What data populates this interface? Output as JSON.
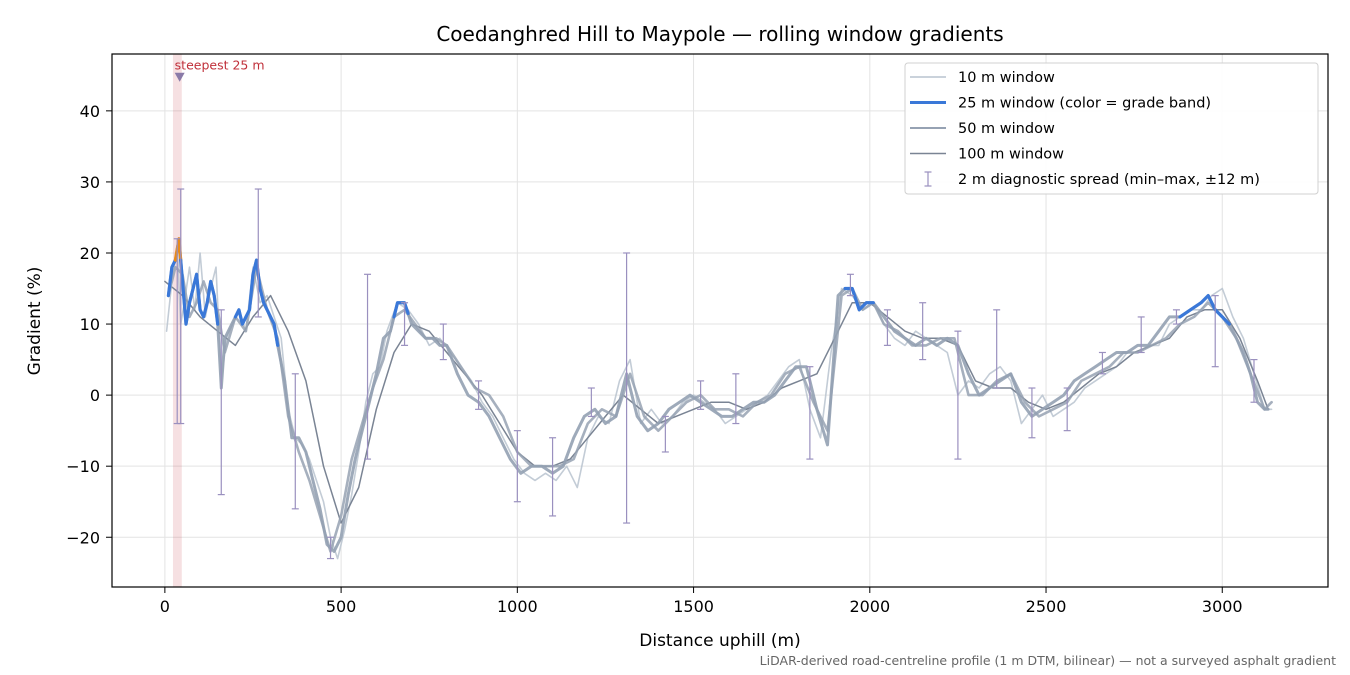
{
  "chart_data": {
    "type": "line",
    "title": "Coedanghred Hill to Maypole — rolling window gradients",
    "xlabel": "Distance uphill (m)",
    "ylabel": "Gradient (%)",
    "xlim": [
      -150,
      3300
    ],
    "ylim": [
      -27,
      48
    ],
    "x_ticks": [
      0,
      500,
      1000,
      1500,
      2000,
      2500,
      3000
    ],
    "x_tick_labels": [
      "0",
      "500",
      "1000",
      "1500",
      "2000",
      "2500",
      "3000"
    ],
    "y_ticks": [
      -20,
      -10,
      0,
      10,
      20,
      30,
      40
    ],
    "y_tick_labels": [
      "−20",
      "−10",
      "0",
      "10",
      "20",
      "30",
      "40"
    ],
    "grid": true,
    "legend_position": "top-right",
    "legend": [
      {
        "label": "10 m window",
        "color": "#b9c3cf"
      },
      {
        "label": "25 m window (color = grade band)",
        "color": "#3a78d8"
      },
      {
        "label": "50 m window",
        "color": "#96a2b3"
      },
      {
        "label": "100 m window",
        "color": "#7a8494"
      },
      {
        "label": "2 m diagnostic spread (min–max, ±12 m)",
        "color": "#9a90bf"
      }
    ],
    "colors": {
      "w10": "#b9c3cf",
      "w25": "#94a1b3",
      "w25_band_steep": "#3a78d8",
      "w25_band_max": "#e8891a",
      "w50": "#96a2b3",
      "w100": "#7a8494",
      "spread": "#9a90bf",
      "highlight": "#c0303a"
    },
    "series": [
      {
        "name": "100 m window",
        "x": [
          0,
          50,
          100,
          150,
          200,
          250,
          300,
          350,
          400,
          450,
          500,
          550,
          600,
          650,
          700,
          750,
          800,
          850,
          900,
          950,
          1000,
          1050,
          1100,
          1150,
          1200,
          1250,
          1300,
          1350,
          1400,
          1450,
          1500,
          1550,
          1600,
          1650,
          1700,
          1750,
          1800,
          1850,
          1900,
          1950,
          2000,
          2050,
          2100,
          2150,
          2200,
          2250,
          2300,
          2350,
          2400,
          2450,
          2500,
          2550,
          2600,
          2650,
          2700,
          2750,
          2800,
          2850,
          2900,
          2950,
          3000,
          3050,
          3100,
          3130
        ],
        "values": [
          16,
          14,
          11,
          9,
          7,
          11,
          14,
          9,
          2,
          -10,
          -18,
          -13,
          -2,
          6,
          10,
          9,
          6,
          3,
          0,
          -4,
          -8,
          -10,
          -10,
          -9,
          -6,
          -3,
          0,
          -2,
          -4,
          -3,
          -2,
          -1,
          -1,
          -2,
          -1,
          1,
          2,
          3,
          8,
          13,
          13,
          11,
          9,
          8,
          8,
          7,
          2,
          1,
          1,
          -1,
          -2,
          -1,
          1,
          3,
          4,
          6,
          7,
          8,
          11,
          12,
          12,
          8,
          2,
          -2
        ]
      },
      {
        "name": "50 m window",
        "x": [
          10,
          30,
          50,
          70,
          90,
          110,
          130,
          150,
          170,
          200,
          230,
          260,
          290,
          320,
          350,
          380,
          410,
          440,
          470,
          500,
          530,
          560,
          590,
          620,
          650,
          680,
          710,
          740,
          770,
          800,
          840,
          880,
          920,
          960,
          1000,
          1040,
          1080,
          1120,
          1160,
          1200,
          1240,
          1280,
          1320,
          1360,
          1400,
          1440,
          1480,
          1520,
          1560,
          1600,
          1640,
          1680,
          1720,
          1760,
          1800,
          1840,
          1880,
          1920,
          1950,
          1980,
          2010,
          2040,
          2080,
          2120,
          2160,
          2200,
          2240,
          2280,
          2320,
          2360,
          2400,
          2440,
          2480,
          2520,
          2560,
          2600,
          2640,
          2680,
          2720,
          2760,
          2800,
          2840,
          2880,
          2920,
          2960,
          3000,
          3040,
          3080,
          3120,
          3140
        ],
        "values": [
          14,
          18,
          17,
          11,
          13,
          16,
          13,
          12,
          6,
          11,
          9,
          18,
          12,
          8,
          -3,
          -8,
          -12,
          -17,
          -22,
          -17,
          -9,
          -4,
          1,
          5,
          11,
          12,
          10,
          8,
          8,
          7,
          4,
          1,
          0,
          -3,
          -8,
          -10,
          -10,
          -10,
          -9,
          -4,
          -2,
          -3,
          3,
          -3,
          -5,
          -3,
          -1,
          0,
          -2,
          -2,
          -3,
          -1,
          0,
          3,
          4,
          -1,
          -5,
          14,
          15,
          12,
          13,
          10,
          9,
          7,
          7,
          8,
          8,
          0,
          0,
          2,
          3,
          -1,
          -3,
          -2,
          -1,
          2,
          3,
          4,
          6,
          6,
          7,
          8,
          10,
          11,
          13,
          11,
          8,
          3,
          -2,
          -1
        ]
      },
      {
        "name": "10 m window",
        "x": [
          5,
          20,
          35,
          45,
          55,
          70,
          85,
          100,
          115,
          130,
          145,
          160,
          175,
          190,
          210,
          230,
          250,
          270,
          290,
          310,
          330,
          350,
          370,
          390,
          410,
          430,
          450,
          470,
          490,
          510,
          530,
          550,
          570,
          590,
          610,
          630,
          660,
          690,
          720,
          750,
          780,
          810,
          840,
          870,
          900,
          930,
          960,
          990,
          1020,
          1050,
          1080,
          1110,
          1140,
          1170,
          1200,
          1230,
          1260,
          1290,
          1320,
          1350,
          1380,
          1410,
          1440,
          1470,
          1500,
          1530,
          1560,
          1590,
          1620,
          1650,
          1680,
          1710,
          1740,
          1770,
          1800,
          1830,
          1860,
          1890,
          1920,
          1950,
          1980,
          2010,
          2040,
          2070,
          2100,
          2130,
          2160,
          2190,
          2220,
          2250,
          2280,
          2310,
          2340,
          2370,
          2400,
          2430,
          2460,
          2490,
          2520,
          2550,
          2580,
          2610,
          2640,
          2670,
          2700,
          2730,
          2760,
          2790,
          2820,
          2850,
          2880,
          2910,
          2940,
          2970,
          3000,
          3030,
          3060,
          3090,
          3120,
          3140
        ],
        "values": [
          9,
          16,
          21,
          10,
          13,
          18,
          12,
          20,
          11,
          15,
          18,
          2,
          8,
          10,
          12,
          9,
          18,
          13,
          14,
          11,
          8,
          -2,
          -6,
          -7,
          -9,
          -12,
          -15,
          -20,
          -23,
          -19,
          -14,
          -8,
          -1,
          3,
          4,
          9,
          13,
          12,
          10,
          7,
          8,
          6,
          4,
          2,
          -1,
          -3,
          -6,
          -9,
          -11,
          -12,
          -11,
          -12,
          -10,
          -13,
          -6,
          -3,
          -4,
          2,
          5,
          -4,
          -2,
          -4,
          -3,
          -1,
          0,
          -1,
          -2,
          -4,
          -3,
          -2,
          -1,
          0,
          2,
          4,
          5,
          -2,
          -6,
          6,
          15,
          14,
          12,
          13,
          10,
          8,
          7,
          9,
          8,
          7,
          6,
          0,
          2,
          1,
          3,
          4,
          2,
          -4,
          -2,
          0,
          -3,
          -2,
          -1,
          1,
          2,
          3,
          4,
          6,
          6,
          7,
          7,
          10,
          11,
          12,
          12,
          14,
          15,
          11,
          8,
          3,
          -2,
          -2
        ]
      },
      {
        "name": "25 m window (color = grade band)",
        "x": [
          10,
          20,
          30,
          40,
          50,
          60,
          70,
          80,
          90,
          100,
          110,
          120,
          130,
          140,
          150,
          160,
          170,
          180,
          190,
          200,
          210,
          220,
          230,
          240,
          250,
          260,
          270,
          280,
          290,
          300,
          310,
          320,
          340,
          360,
          380,
          400,
          420,
          440,
          460,
          480,
          500,
          520,
          540,
          560,
          580,
          600,
          620,
          640,
          660,
          680,
          700,
          720,
          740,
          760,
          780,
          800,
          830,
          860,
          890,
          920,
          950,
          980,
          1010,
          1040,
          1070,
          1100,
          1130,
          1160,
          1190,
          1220,
          1250,
          1280,
          1310,
          1340,
          1370,
          1400,
          1430,
          1460,
          1490,
          1520,
          1550,
          1580,
          1610,
          1640,
          1670,
          1700,
          1730,
          1760,
          1790,
          1820,
          1850,
          1880,
          1910,
          1930,
          1950,
          1970,
          1990,
          2010,
          2040,
          2070,
          2100,
          2130,
          2160,
          2190,
          2220,
          2250,
          2280,
          2310,
          2340,
          2370,
          2400,
          2430,
          2460,
          2490,
          2520,
          2550,
          2580,
          2610,
          2640,
          2670,
          2700,
          2730,
          2760,
          2790,
          2820,
          2850,
          2880,
          2910,
          2940,
          2960,
          2980,
          3000,
          3020,
          3040,
          3060,
          3080,
          3100,
          3120,
          3130
        ],
        "values": [
          14,
          18,
          19,
          22,
          16,
          10,
          13,
          15,
          17,
          12,
          11,
          13,
          16,
          14,
          10,
          1,
          8,
          9,
          10,
          11,
          12,
          10,
          11,
          12,
          17,
          19,
          15,
          13,
          12,
          11,
          10,
          7,
          2,
          -6,
          -6,
          -8,
          -12,
          -16,
          -21,
          -22,
          -20,
          -14,
          -9,
          -5,
          -1,
          3,
          8,
          9,
          13,
          13,
          10,
          9,
          8,
          8,
          7,
          7,
          3,
          0,
          -1,
          -3,
          -6,
          -9,
          -11,
          -10,
          -10,
          -11,
          -10,
          -6,
          -3,
          -2,
          -4,
          -3,
          3,
          -3,
          -5,
          -4,
          -2,
          -1,
          0,
          -1,
          -2,
          -3,
          -3,
          -2,
          -1,
          -1,
          0,
          2,
          4,
          4,
          -2,
          -7,
          14,
          15,
          15,
          12,
          13,
          13,
          11,
          9,
          8,
          7,
          8,
          7,
          8,
          7,
          3,
          0,
          1,
          2,
          3,
          -1,
          -3,
          -2,
          -1,
          0,
          2,
          3,
          4,
          5,
          6,
          6,
          7,
          7,
          9,
          11,
          11,
          12,
          13,
          14,
          12,
          11,
          10,
          8,
          6,
          3,
          -1,
          -2,
          -2
        ]
      }
    ],
    "band_segments": [
      {
        "band": "steep",
        "x_from": 10,
        "x_to": 30
      },
      {
        "band": "max",
        "x_from": 30,
        "x_to": 45
      },
      {
        "band": "steep",
        "x_from": 45,
        "x_to": 150
      },
      {
        "band": "steep",
        "x_from": 200,
        "x_to": 320
      },
      {
        "band": "steep",
        "x_from": 650,
        "x_to": 690
      },
      {
        "band": "steep",
        "x_from": 1930,
        "x_to": 2010
      },
      {
        "band": "steep",
        "x_from": 2880,
        "x_to": 3020
      }
    ],
    "spread_bars": [
      {
        "x": 35,
        "min": -4,
        "max": 22
      },
      {
        "x": 45,
        "min": -4,
        "max": 29
      },
      {
        "x": 160,
        "min": -14,
        "max": 12
      },
      {
        "x": 265,
        "min": 11,
        "max": 29
      },
      {
        "x": 370,
        "min": -16,
        "max": 3
      },
      {
        "x": 470,
        "min": -23,
        "max": -20
      },
      {
        "x": 575,
        "min": -9,
        "max": 17
      },
      {
        "x": 680,
        "min": 7,
        "max": 13
      },
      {
        "x": 790,
        "min": 5,
        "max": 10
      },
      {
        "x": 890,
        "min": -2,
        "max": 2
      },
      {
        "x": 1000,
        "min": -15,
        "max": -5
      },
      {
        "x": 1100,
        "min": -17,
        "max": -6
      },
      {
        "x": 1210,
        "min": -3,
        "max": 1
      },
      {
        "x": 1310,
        "min": -18,
        "max": 20
      },
      {
        "x": 1420,
        "min": -8,
        "max": -3
      },
      {
        "x": 1520,
        "min": -2,
        "max": 2
      },
      {
        "x": 1620,
        "min": -4,
        "max": 3
      },
      {
        "x": 1830,
        "min": -9,
        "max": 4
      },
      {
        "x": 1945,
        "min": 14,
        "max": 17
      },
      {
        "x": 2050,
        "min": 7,
        "max": 12
      },
      {
        "x": 2150,
        "min": 5,
        "max": 13
      },
      {
        "x": 2250,
        "min": -9,
        "max": 9
      },
      {
        "x": 2360,
        "min": 1,
        "max": 12
      },
      {
        "x": 2460,
        "min": -6,
        "max": 1
      },
      {
        "x": 2560,
        "min": -5,
        "max": 1
      },
      {
        "x": 2660,
        "min": 3,
        "max": 6
      },
      {
        "x": 2770,
        "min": 6,
        "max": 11
      },
      {
        "x": 2870,
        "min": 10,
        "max": 12
      },
      {
        "x": 2980,
        "min": 4,
        "max": 14
      },
      {
        "x": 3090,
        "min": -1,
        "max": 5
      }
    ],
    "highlight": {
      "label": "steepest 25 m",
      "x_from": 23,
      "x_to": 48,
      "marker_x": 42,
      "marker_y": 44.8
    },
    "footnote": "LiDAR-derived road-centreline profile (1 m DTM, bilinear) — not a surveyed asphalt gradient"
  }
}
